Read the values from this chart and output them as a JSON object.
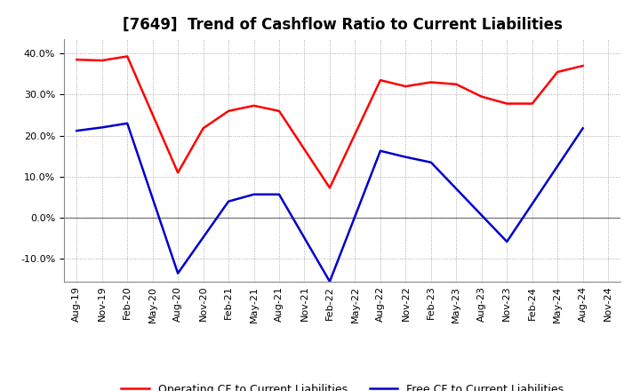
{
  "title": "[7649]  Trend of Cashflow Ratio to Current Liabilities",
  "x_labels": [
    "Aug-19",
    "Nov-19",
    "Feb-20",
    "May-20",
    "Aug-20",
    "Nov-20",
    "Feb-21",
    "May-21",
    "Aug-21",
    "Nov-21",
    "Feb-22",
    "May-22",
    "Aug-22",
    "Nov-22",
    "Feb-23",
    "May-23",
    "Aug-23",
    "Nov-23",
    "Feb-24",
    "May-24",
    "Aug-24",
    "Nov-24"
  ],
  "op_x": [
    0,
    1,
    2,
    4,
    5,
    6,
    7,
    8,
    10,
    12,
    13,
    14,
    15,
    16,
    17,
    18,
    19,
    20
  ],
  "op_y": [
    0.385,
    0.383,
    0.393,
    0.11,
    0.218,
    0.26,
    0.273,
    0.26,
    0.073,
    0.335,
    0.32,
    0.33,
    0.325,
    0.295,
    0.278,
    0.278,
    0.355,
    0.37
  ],
  "fr_x": [
    0,
    1,
    2,
    4,
    6,
    7,
    8,
    10,
    12,
    13,
    14,
    17,
    20
  ],
  "fr_y": [
    0.212,
    0.22,
    0.23,
    -0.135,
    0.04,
    0.057,
    0.057,
    -0.155,
    0.163,
    0.148,
    0.135,
    -0.058,
    0.218
  ],
  "operating_color": "#ff0000",
  "free_color": "#0000cc",
  "ylim": [
    -0.155,
    0.435
  ],
  "yticks": [
    -0.1,
    0.0,
    0.1,
    0.2,
    0.3,
    0.4
  ],
  "background_color": "#ffffff",
  "grid_color": "#999999",
  "legend_op": "Operating CF to Current Liabilities",
  "legend_free": "Free CF to Current Liabilities",
  "title_fontsize": 12,
  "tick_fontsize": 8,
  "legend_fontsize": 9
}
